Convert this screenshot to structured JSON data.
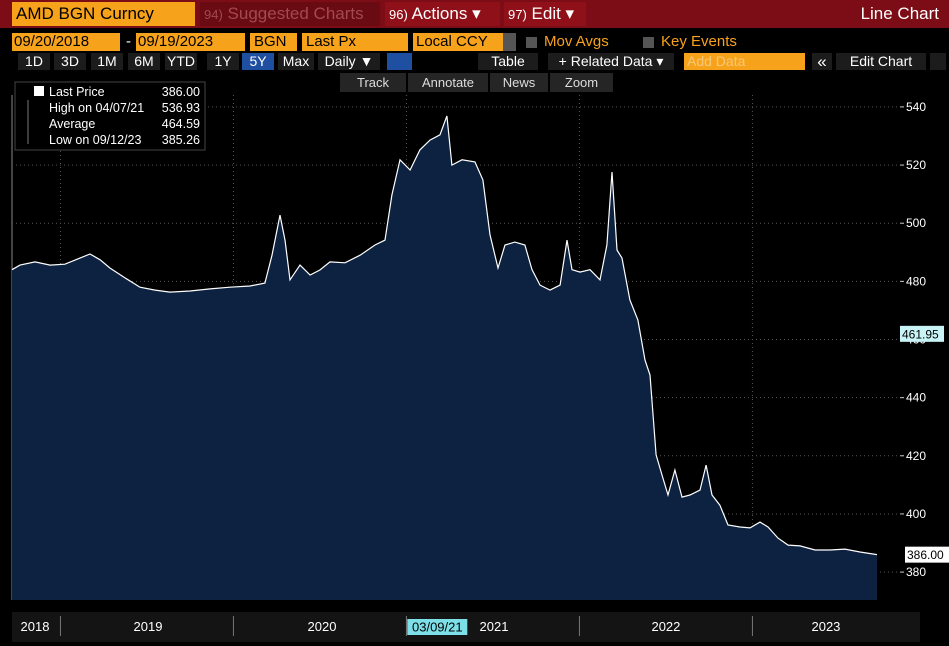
{
  "header": {
    "security": "AMD BGN Curncy",
    "menus": [
      {
        "key": "94)",
        "label": "Suggested Charts"
      },
      {
        "key": "96)",
        "label": "Actions ▾"
      },
      {
        "key": "97)",
        "label": "Edit ▾"
      }
    ],
    "chart_type": "Line Chart"
  },
  "settings": {
    "start_date": "09/20/2018",
    "separator": "-",
    "end_date": "09/19/2023",
    "source": "BGN",
    "field": "Last Px",
    "currency": "Local CCY",
    "mov_avgs": "Mov Avgs",
    "key_events": "Key Events"
  },
  "toolbar": {
    "periods": [
      "1D",
      "3D",
      "1M",
      "6M",
      "YTD",
      "1Y",
      "5Y",
      "Max"
    ],
    "active_period_index": 6,
    "frequency": "Daily ▼",
    "table": "Table",
    "related_data": "+ Related Data ▾",
    "add_data": "Add Data",
    "collapse": "«",
    "edit_chart": "Edit Chart"
  },
  "tools": [
    "Track",
    "Annotate",
    "News",
    "Zoom"
  ],
  "chart_data": {
    "type": "area",
    "legend_stats": [
      {
        "label": "Last Price",
        "value": "386.00"
      },
      {
        "label": "High on 04/07/21",
        "value": "536.93"
      },
      {
        "label": "Average",
        "value": "464.59"
      },
      {
        "label": "Low on 09/12/23",
        "value": "385.26"
      }
    ],
    "x": [
      2018.72,
      2018.766,
      2018.853,
      2018.94,
      2019.026,
      2019.113,
      2019.171,
      2019.229,
      2019.286,
      2019.373,
      2019.46,
      2019.547,
      2019.633,
      2019.749,
      2019.865,
      2019.98,
      2020.096,
      2020.182,
      2020.223,
      2020.269,
      2020.298,
      2020.327,
      2020.385,
      2020.443,
      2020.5,
      2020.558,
      2020.645,
      2020.732,
      2020.818,
      2020.876,
      2020.916,
      2020.963,
      2021.021,
      2021.078,
      2021.136,
      2021.194,
      2021.234,
      2021.263,
      2021.321,
      2021.396,
      2021.442,
      2021.483,
      2021.529,
      2021.57,
      2021.627,
      2021.685,
      2021.726,
      2021.772,
      2021.83,
      2021.888,
      2021.928,
      2021.957,
      2022.003,
      2022.061,
      2022.119,
      2022.159,
      2022.188,
      2022.217,
      2022.246,
      2022.292,
      2022.338,
      2022.379,
      2022.408,
      2022.443,
      2022.477,
      2022.512,
      2022.552,
      2022.593,
      2022.639,
      2022.697,
      2022.732,
      2022.766,
      2022.812,
      2022.859,
      2022.928,
      2022.986,
      2023.044,
      2023.09,
      2023.148,
      2023.206,
      2023.275,
      2023.362,
      2023.448,
      2023.535,
      2023.622,
      2023.72
    ],
    "series": [
      {
        "color": "#ffffff",
        "fill": "#0c2240",
        "values": [
          484,
          485.6,
          486.7,
          485.6,
          485.9,
          488,
          489.4,
          487.4,
          484.6,
          481.2,
          478,
          477,
          476.3,
          476.7,
          477.4,
          478,
          478.4,
          479.4,
          489,
          502.8,
          494.2,
          480.5,
          485.6,
          482.2,
          483.9,
          486.7,
          486.4,
          489,
          492.5,
          494.2,
          509.7,
          521.8,
          518.3,
          525.2,
          528.6,
          530.4,
          536.9,
          520,
          521.8,
          521.1,
          514.9,
          496,
          484.6,
          492.5,
          493.5,
          492.5,
          484,
          478.7,
          477,
          478.7,
          494.2,
          484,
          483.2,
          484,
          480.5,
          492.5,
          517.6,
          490.8,
          488,
          473.6,
          466.7,
          452.9,
          447.8,
          420.3,
          413.4,
          406.5,
          415.1,
          405.8,
          406.5,
          408.2,
          416.8,
          406.5,
          403,
          396.2,
          395.5,
          395.2,
          397.2,
          395.5,
          391.7,
          389.3,
          389,
          387.6,
          387.6,
          387.9,
          386.9,
          386
        ]
      }
    ],
    "xlim": [
      2018.72,
      2023.853
    ],
    "ylim": [
      370.4,
      544.1
    ],
    "yticks": [
      380,
      400,
      420,
      440,
      460,
      480,
      500,
      520,
      540
    ],
    "xticks": [
      {
        "value": 2018.853,
        "label": "2018"
      },
      {
        "value": 2019.506,
        "label": "2019"
      },
      {
        "value": 2020.512,
        "label": "2020"
      },
      {
        "value": 2021.506,
        "label": "2021"
      },
      {
        "value": 2022.5,
        "label": "2022"
      },
      {
        "value": 2023.425,
        "label": "2023"
      }
    ],
    "year_boundaries": [
      2019,
      2020,
      2021,
      2022,
      2023
    ],
    "last_value": {
      "value": 386,
      "label": "386.00"
    },
    "cursor": {
      "x": 2021.19,
      "x_label": "03/09/21",
      "y": 461.95
    },
    "grid": true
  }
}
